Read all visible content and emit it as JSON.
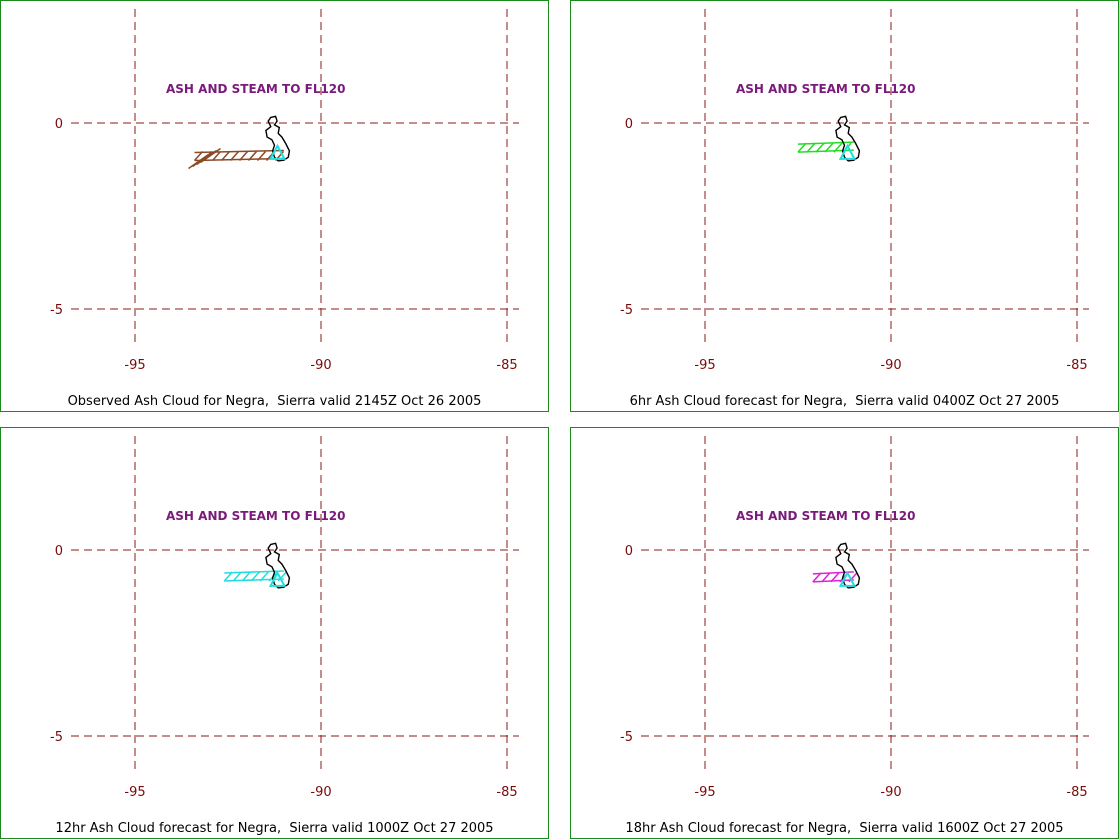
{
  "panels": [
    {
      "caption": "Observed Ash Cloud for Negra,  Sierra valid 2145Z Oct 26 2005",
      "annotation": "ASH AND STEAM TO FL120",
      "cloud_color": "#8b4a26",
      "cloud_lon": [
        -93.4,
        -91.0
      ],
      "cloud_lat": [
        -1.3,
        -0.5
      ]
    },
    {
      "caption": "6hr Ash Cloud forecast for Negra,  Sierra valid 0400Z Oct 27 2005",
      "annotation": "ASH AND STEAM TO FL120",
      "cloud_color": "#22dd22",
      "cloud_lon": [
        -92.5,
        -91.0
      ],
      "cloud_lat": [
        -0.95,
        -0.4
      ]
    },
    {
      "caption": "12hr Ash Cloud forecast for Negra,  Sierra valid 1000Z Oct 27 2005",
      "annotation": "ASH AND STEAM TO FL120",
      "cloud_color": "#22dddd",
      "cloud_lon": [
        -92.6,
        -91.0
      ],
      "cloud_lat": [
        -0.95,
        -0.5
      ]
    },
    {
      "caption": "18hr Ash Cloud forecast for Negra,  Sierra valid 1600Z Oct 27 2005",
      "annotation": "ASH AND STEAM TO FL120",
      "cloud_color": "#dd22dd",
      "cloud_lon": [
        -92.1,
        -91.0
      ],
      "cloud_lat": [
        -0.95,
        -0.55
      ]
    }
  ],
  "axes": {
    "lon_ticks": [
      "-95",
      "-90",
      "-85"
    ],
    "lat_ticks": [
      "0",
      "-5"
    ],
    "lon_values": [
      -95,
      -90,
      -85
    ],
    "lat_values": [
      0,
      -5
    ],
    "grid_color": "#8b1a1a"
  },
  "volcano": {
    "name": "Negra, Sierra",
    "lon": -91.17,
    "lat": -0.83,
    "marker_color": "#22dddd"
  }
}
